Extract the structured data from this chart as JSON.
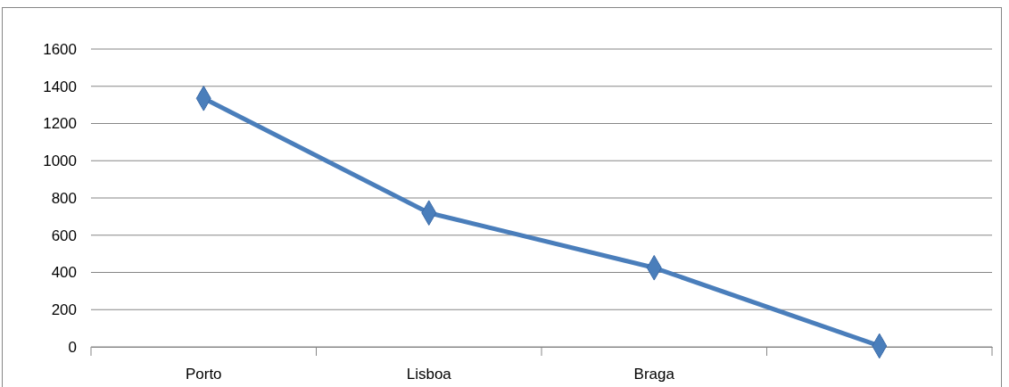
{
  "chart_data": {
    "type": "line",
    "categories": [
      "Porto",
      "Lisboa",
      "Braga",
      null
    ],
    "series": [
      {
        "color": "#4a7ebb",
        "values": [
          1335,
          720,
          425,
          5
        ]
      }
    ],
    "ylim": [
      0,
      1600
    ],
    "yticks": [
      0,
      200,
      400,
      600,
      800,
      1000,
      1200,
      1400,
      1600
    ],
    "grid": "y",
    "marker": "diamond",
    "line_style": "solid"
  }
}
